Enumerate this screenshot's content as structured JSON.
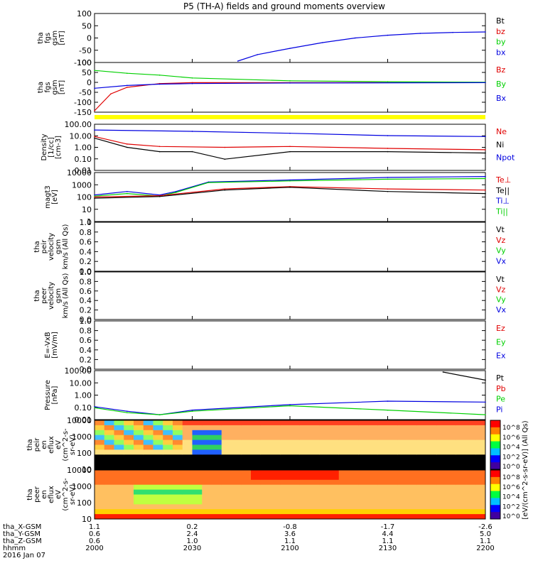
{
  "title": "P5 (TH-A) fields and ground moments overview",
  "colors": {
    "black": "#000000",
    "red": "#e00000",
    "green": "#00d000",
    "blue": "#0000e0",
    "yellow": "#ffff00"
  },
  "panels": [
    {
      "id": "fgs_gsm",
      "ylabel": [
        "tha",
        "fgs",
        "gsm",
        "[nT]"
      ],
      "ticks": [
        "100",
        "50",
        "0",
        "-50",
        "-100"
      ],
      "legend": [
        {
          "text": "Bt",
          "color": "black"
        },
        {
          "text": "bz",
          "color": "red"
        },
        {
          "text": "by",
          "color": "green"
        },
        {
          "text": "bx",
          "color": "blue"
        }
      ]
    },
    {
      "id": "fgs_gse",
      "ylabel": [
        "tha",
        "fgs",
        "gsm",
        "[nT]"
      ],
      "ticks": [
        "100",
        "50",
        "0",
        "-50",
        "-100",
        "-150"
      ],
      "legend": [
        {
          "text": "Bz",
          "color": "red"
        },
        {
          "text": "By",
          "color": "green"
        },
        {
          "text": "Bx",
          "color": "blue"
        }
      ]
    },
    {
      "id": "density",
      "ylabel": [
        "Density",
        "[1/cc]",
        "[cm-3]"
      ],
      "ticks": [
        "100.00",
        "10.00",
        "1.00",
        "0.10",
        "0.01"
      ],
      "legend": [
        {
          "text": "Ne",
          "color": "red"
        },
        {
          "text": "Ni",
          "color": "black"
        },
        {
          "text": "Npot",
          "color": "blue"
        }
      ]
    },
    {
      "id": "temperature",
      "ylabel": [
        "magt3",
        "[eV]"
      ],
      "ticks": [
        "10000",
        "1000",
        "100",
        "10",
        "1"
      ],
      "legend": [
        {
          "text": "Te⊥",
          "color": "red"
        },
        {
          "text": "Te||",
          "color": "black"
        },
        {
          "text": "Ti⊥",
          "color": "blue"
        },
        {
          "text": "Ti||",
          "color": "green"
        }
      ]
    },
    {
      "id": "peir_velocity",
      "ylabel": [
        "tha",
        "peir",
        "velocity",
        "gsm",
        "km/s (All Qs)"
      ],
      "ticks": [
        "1.0",
        "0.8",
        "0.6",
        "0.4",
        "0.2",
        "0.0"
      ],
      "legend": [
        {
          "text": "Vt",
          "color": "black"
        },
        {
          "text": "Vz",
          "color": "red"
        },
        {
          "text": "Vy",
          "color": "green"
        },
        {
          "text": "Vx",
          "color": "blue"
        }
      ]
    },
    {
      "id": "peer_velocity",
      "ylabel": [
        "tha",
        "peer",
        "velocity",
        "gsm",
        "km/s (All Qs)"
      ],
      "ticks": [
        "1.0",
        "0.8",
        "0.6",
        "0.4",
        "0.2",
        "0.0"
      ],
      "legend": [
        {
          "text": "Vt",
          "color": "black"
        },
        {
          "text": "Vz",
          "color": "red"
        },
        {
          "text": "Vy",
          "color": "green"
        },
        {
          "text": "Vx",
          "color": "blue"
        }
      ]
    },
    {
      "id": "efield",
      "ylabel": [
        "E=-VxB",
        "[mV/m]"
      ],
      "ticks": [
        "1.0",
        "0.8",
        "0.6",
        "0.4",
        "0.2",
        "0.0"
      ],
      "legend": [
        {
          "text": "Ez",
          "color": "red"
        },
        {
          "text": "Ey",
          "color": "green"
        },
        {
          "text": "Ex",
          "color": "blue"
        }
      ]
    },
    {
      "id": "pressure",
      "ylabel": [
        "Pressure",
        "[nPa]"
      ],
      "ticks": [
        "100.00",
        "10.00",
        "1.00",
        "0.10",
        "0.01"
      ],
      "legend": [
        {
          "text": "Pt",
          "color": "black"
        },
        {
          "text": "Pb",
          "color": "red"
        },
        {
          "text": "Pe",
          "color": "green"
        },
        {
          "text": "Pi",
          "color": "blue"
        }
      ]
    },
    {
      "id": "peir_spec",
      "ylabel": [
        "tha",
        "peir",
        "en",
        "eflux",
        "eV",
        "(cm^2-s-",
        "sr-eV)"
      ],
      "ticks": [
        "10000",
        "1000",
        "100",
        "10"
      ],
      "legend": []
    },
    {
      "id": "peer_spec",
      "ylabel": [
        "tha",
        "peer",
        "en",
        "eflux",
        "eV",
        "(cm^2-s-",
        "sr-eV)"
      ],
      "ticks": [
        "10000",
        "1000",
        "100",
        "10"
      ],
      "legend": []
    }
  ],
  "colorbar": {
    "label": "[eV/(cm^2-s-sr-eV)] (All Qs)",
    "ticks_top": [
      "10^8",
      "10^6",
      "10^4",
      "10^2",
      "10^0"
    ],
    "ticks_bottom": [
      "10^8",
      "10^6",
      "10^4",
      "10^2",
      "10^0"
    ]
  },
  "xaxis": {
    "row_labels": [
      "tha_X-GSM",
      "tha_Y-GSM",
      "tha_Z-GSM",
      "hhmm",
      "2016 Jan 07"
    ],
    "columns": [
      {
        "values": [
          "1.1",
          "0.6",
          "0.6",
          "2000"
        ]
      },
      {
        "values": [
          "0.2",
          "2.4",
          "1.0",
          "2030"
        ]
      },
      {
        "values": [
          "-0.8",
          "3.6",
          "1.1",
          "2100"
        ]
      },
      {
        "values": [
          "-1.7",
          "4.4",
          "1.1",
          "2130"
        ]
      },
      {
        "values": [
          "-2.6",
          "5.0",
          "1.1",
          "2200"
        ]
      }
    ]
  },
  "chart_data": [
    {
      "type": "line",
      "panel": "fgs_gsm",
      "title": "",
      "x_unit": "hhmm",
      "xlim": [
        "2000",
        "2200"
      ],
      "ylim": [
        -100,
        100
      ],
      "series": [
        {
          "name": "bx",
          "color": "blue",
          "x": [
            "2044",
            "2050",
            "2100",
            "2110",
            "2120",
            "2130",
            "2140",
            "2150",
            "2200"
          ],
          "values": [
            -100,
            -72,
            -45,
            -20,
            0,
            12,
            20,
            24,
            26
          ]
        }
      ]
    },
    {
      "type": "line",
      "panel": "fgs_gse",
      "title": "",
      "xlim": [
        "2000",
        "2200"
      ],
      "ylim": [
        -150,
        100
      ],
      "series": [
        {
          "name": "Bz",
          "color": "red",
          "x": [
            "2000",
            "2005",
            "2010",
            "2020",
            "2030",
            "2100",
            "2200"
          ],
          "values": [
            -150,
            -60,
            -25,
            -5,
            0,
            0,
            0
          ]
        },
        {
          "name": "By",
          "color": "green",
          "x": [
            "2000",
            "2010",
            "2020",
            "2030",
            "2100",
            "2130",
            "2200"
          ],
          "values": [
            65,
            50,
            40,
            25,
            10,
            5,
            2
          ]
        },
        {
          "name": "Bx",
          "color": "blue",
          "x": [
            "2000",
            "2010",
            "2020",
            "2030",
            "2100",
            "2200"
          ],
          "values": [
            -30,
            -15,
            -8,
            -5,
            -2,
            0
          ]
        }
      ]
    },
    {
      "type": "line",
      "panel": "density",
      "title": "",
      "xlim": [
        "2000",
        "2200"
      ],
      "ylim": [
        0.01,
        100
      ],
      "yscale": "log",
      "series": [
        {
          "name": "Npot",
          "color": "blue",
          "x": [
            "2000",
            "2030",
            "2100",
            "2130",
            "2200"
          ],
          "values": [
            40,
            30,
            20,
            12,
            10
          ]
        },
        {
          "name": "Ne",
          "color": "red",
          "x": [
            "2000",
            "2010",
            "2020",
            "2040",
            "2100",
            "2130",
            "2200"
          ],
          "values": [
            10,
            2,
            1.2,
            1,
            1.2,
            0.8,
            0.6
          ]
        },
        {
          "name": "Ni",
          "color": "black",
          "x": [
            "2000",
            "2010",
            "2020",
            "2030",
            "2040",
            "2100",
            "2130",
            "2200"
          ],
          "values": [
            7,
            1,
            0.4,
            0.4,
            0.08,
            0.4,
            0.4,
            0.3
          ]
        }
      ]
    },
    {
      "type": "line",
      "panel": "temperature",
      "title": "",
      "xlim": [
        "2000",
        "2200"
      ],
      "ylim": [
        1,
        10000
      ],
      "yscale": "log",
      "series": [
        {
          "name": "Ti⊥",
          "color": "blue",
          "x": [
            "2000",
            "2010",
            "2020",
            "2025",
            "2035",
            "2100",
            "2130",
            "2200"
          ],
          "values": [
            150,
            300,
            150,
            300,
            2000,
            3000,
            5000,
            6000
          ]
        },
        {
          "name": "Ti||",
          "color": "green",
          "x": [
            "2000",
            "2010",
            "2020",
            "2025",
            "2035",
            "2100",
            "2130",
            "2200"
          ],
          "values": [
            120,
            200,
            120,
            250,
            1800,
            2500,
            3500,
            4000
          ]
        },
        {
          "name": "Te⊥",
          "color": "red",
          "x": [
            "2000",
            "2020",
            "2040",
            "2100",
            "2130",
            "2200"
          ],
          "values": [
            100,
            130,
            500,
            800,
            500,
            400
          ]
        },
        {
          "name": "Te||",
          "color": "black",
          "x": [
            "2000",
            "2020",
            "2040",
            "2100",
            "2130",
            "2200"
          ],
          "values": [
            80,
            110,
            400,
            700,
            300,
            200
          ]
        }
      ]
    },
    {
      "type": "line",
      "panel": "pressure",
      "title": "",
      "xlim": [
        "2000",
        "2200"
      ],
      "ylim": [
        0.01,
        100
      ],
      "yscale": "log",
      "series": [
        {
          "name": "Pt",
          "color": "black",
          "x": [
            "2147",
            "2200"
          ],
          "values": [
            100,
            20
          ]
        },
        {
          "name": "Pi",
          "color": "blue",
          "x": [
            "2000",
            "2010",
            "2020",
            "2030",
            "2100",
            "2130",
            "2200"
          ],
          "values": [
            0.1,
            0.04,
            0.02,
            0.05,
            0.15,
            0.3,
            0.25
          ]
        },
        {
          "name": "Pe",
          "color": "green",
          "x": [
            "2000",
            "2010",
            "2020",
            "2030",
            "2100",
            "2130",
            "2200"
          ],
          "values": [
            0.08,
            0.03,
            0.02,
            0.04,
            0.12,
            0.05,
            0.02
          ]
        }
      ]
    }
  ]
}
